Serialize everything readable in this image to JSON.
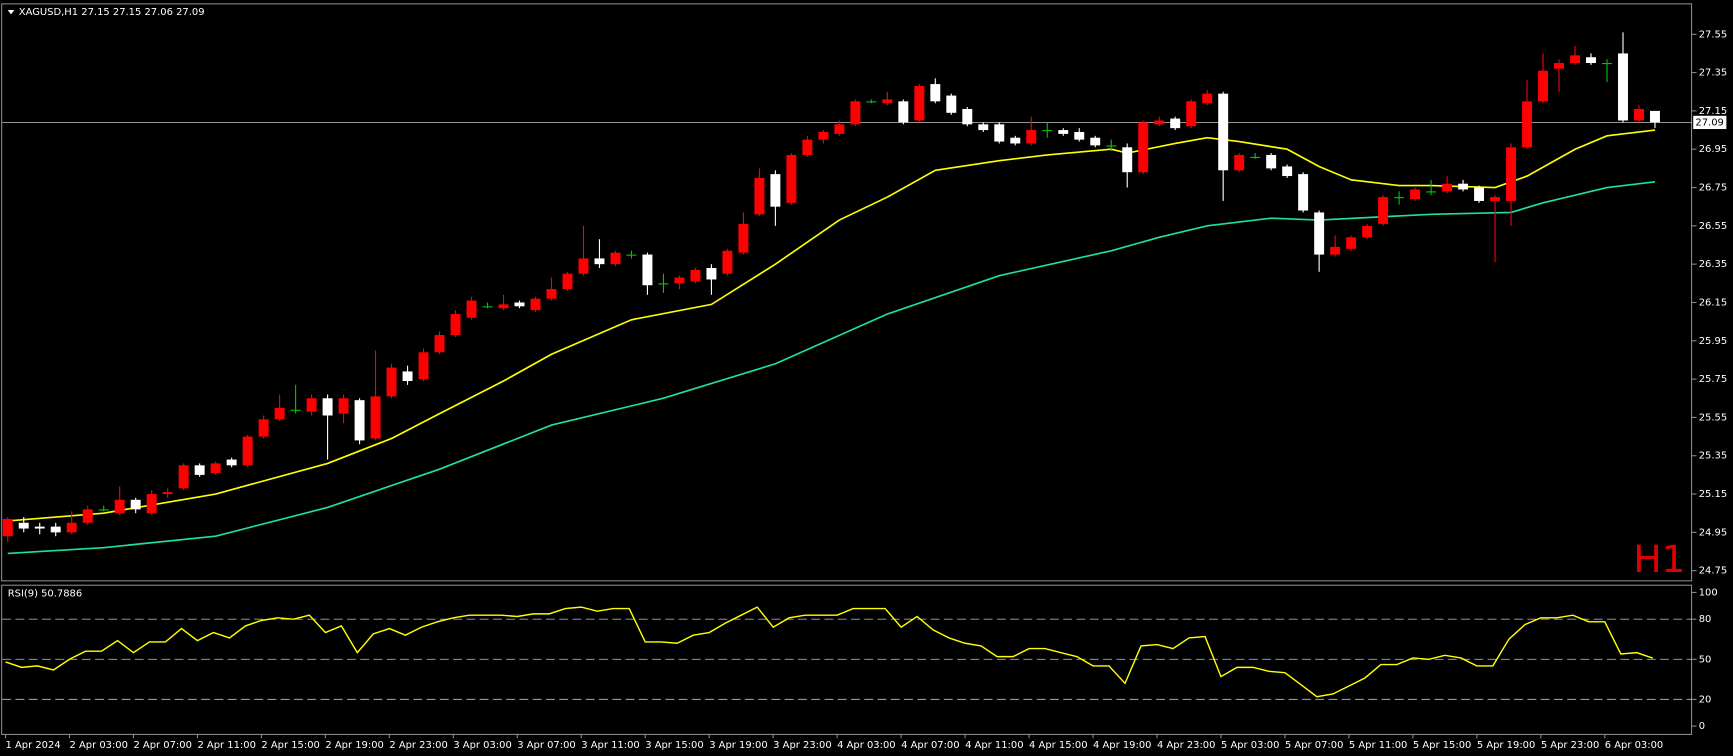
{
  "header": {
    "label": "XAGUSD,H1  27.15 27.15 27.06 27.09"
  },
  "chart_data": [
    {
      "type": "candlestick",
      "up_color": "#ff0000",
      "down_color": "#ffffff",
      "doji_color": "#00c800",
      "ylim": [
        24.7,
        27.7
      ],
      "yticks": [
        27.55,
        27.35,
        27.15,
        26.95,
        26.75,
        26.55,
        26.35,
        26.15,
        25.95,
        25.75,
        25.55,
        25.35,
        25.15,
        24.95,
        24.75
      ],
      "xticks": [
        {
          "value": 0,
          "label": "1 Apr 2024"
        },
        {
          "value": 4,
          "label": "2 Apr 03:00"
        },
        {
          "value": 8,
          "label": "2 Apr 07:00"
        },
        {
          "value": 12,
          "label": "2 Apr 11:00"
        },
        {
          "value": 16,
          "label": "2 Apr 15:00"
        },
        {
          "value": 20,
          "label": "2 Apr 19:00"
        },
        {
          "value": 24,
          "label": "2 Apr 23:00"
        },
        {
          "value": 28,
          "label": "3 Apr 03:00"
        },
        {
          "value": 32,
          "label": "3 Apr 07:00"
        },
        {
          "value": 36,
          "label": "3 Apr 11:00"
        },
        {
          "value": 40,
          "label": "3 Apr 15:00"
        },
        {
          "value": 44,
          "label": "3 Apr 19:00"
        },
        {
          "value": 48,
          "label": "3 Apr 23:00"
        },
        {
          "value": 52,
          "label": "4 Apr 03:00"
        },
        {
          "value": 56,
          "label": "4 Apr 07:00"
        },
        {
          "value": 60,
          "label": "4 Apr 11:00"
        },
        {
          "value": 64,
          "label": "4 Apr 15:00"
        },
        {
          "value": 68,
          "label": "4 Apr 19:00"
        },
        {
          "value": 72,
          "label": "4 Apr 23:00"
        },
        {
          "value": 76,
          "label": "5 Apr 03:00"
        },
        {
          "value": 80,
          "label": "5 Apr 07:00"
        },
        {
          "value": 84,
          "label": "5 Apr 11:00"
        },
        {
          "value": 88,
          "label": "5 Apr 15:00"
        },
        {
          "value": 92,
          "label": "5 Apr 19:00"
        },
        {
          "value": 96,
          "label": "5 Apr 23:00"
        },
        {
          "value": 100,
          "label": "6 Apr 03:00"
        }
      ],
      "open": [
        24.93,
        25.0,
        24.98,
        24.98,
        24.95,
        25.0,
        25.07,
        25.05,
        25.12,
        25.05,
        25.15,
        25.18,
        25.3,
        25.26,
        25.33,
        25.3,
        25.45,
        25.54,
        25.59,
        25.58,
        25.65,
        25.57,
        25.64,
        25.44,
        25.66,
        25.79,
        25.75,
        25.89,
        25.98,
        26.07,
        26.13,
        26.12,
        26.15,
        26.11,
        26.17,
        26.22,
        26.3,
        26.38,
        26.35,
        26.4,
        26.4,
        26.25,
        26.25,
        26.26,
        26.33,
        26.3,
        26.41,
        26.61,
        26.82,
        26.67,
        26.92,
        27.0,
        27.03,
        27.08,
        27.2,
        27.19,
        27.2,
        27.1,
        27.29,
        27.23,
        27.16,
        27.08,
        27.08,
        27.01,
        26.98,
        27.05,
        27.05,
        27.04,
        27.01,
        26.97,
        26.96,
        26.83,
        27.08,
        27.11,
        27.07,
        27.19,
        27.24,
        26.84,
        26.91,
        26.92,
        26.86,
        26.82,
        26.62,
        26.4,
        26.43,
        26.49,
        26.56,
        26.7,
        26.69,
        26.73,
        26.73,
        26.77,
        26.75,
        26.68,
        26.68,
        26.96,
        27.2,
        27.37,
        27.4,
        27.43,
        27.4,
        27.45,
        27.1,
        27.15
      ],
      "high": [
        25.03,
        25.03,
        25.0,
        25.0,
        25.06,
        25.09,
        25.09,
        25.19,
        25.13,
        25.17,
        25.18,
        25.31,
        25.31,
        25.32,
        25.34,
        25.46,
        25.56,
        25.67,
        25.72,
        25.67,
        25.67,
        25.67,
        25.65,
        25.9,
        25.83,
        25.82,
        25.91,
        26.0,
        26.11,
        26.18,
        26.15,
        26.19,
        26.16,
        26.18,
        26.28,
        26.31,
        26.55,
        26.48,
        26.42,
        26.42,
        26.41,
        26.3,
        26.29,
        26.33,
        26.35,
        26.43,
        26.62,
        26.85,
        26.84,
        26.93,
        27.02,
        27.05,
        27.1,
        27.21,
        27.21,
        27.25,
        27.21,
        27.29,
        27.32,
        27.24,
        27.17,
        27.09,
        27.09,
        27.02,
        27.12,
        27.09,
        27.06,
        27.06,
        27.02,
        27.0,
        26.98,
        27.1,
        27.12,
        27.12,
        27.21,
        27.26,
        27.25,
        26.93,
        26.93,
        26.93,
        26.87,
        26.83,
        26.63,
        26.5,
        26.5,
        26.56,
        26.71,
        26.73,
        26.75,
        26.79,
        26.81,
        26.79,
        26.76,
        26.71,
        26.98,
        27.31,
        27.45,
        27.42,
        27.49,
        27.45,
        27.42,
        27.56,
        27.18,
        27.15
      ],
      "low": [
        24.9,
        24.95,
        24.94,
        24.93,
        24.94,
        24.99,
        25.06,
        25.04,
        25.05,
        25.04,
        25.13,
        25.17,
        25.24,
        25.25,
        25.29,
        25.29,
        25.44,
        25.53,
        25.57,
        25.56,
        25.33,
        25.52,
        25.41,
        25.43,
        25.65,
        25.72,
        25.74,
        25.88,
        25.97,
        26.06,
        26.12,
        26.11,
        26.12,
        26.1,
        26.16,
        26.21,
        26.29,
        26.33,
        26.34,
        26.38,
        26.19,
        26.2,
        26.22,
        26.25,
        26.19,
        26.29,
        26.4,
        26.6,
        26.55,
        26.66,
        26.91,
        26.98,
        27.02,
        27.07,
        27.19,
        27.18,
        27.08,
        27.09,
        27.19,
        27.13,
        27.07,
        27.04,
        26.98,
        26.97,
        26.97,
        27.01,
        27.02,
        26.99,
        26.96,
        26.94,
        26.75,
        26.82,
        27.07,
        27.05,
        27.06,
        27.18,
        26.68,
        26.83,
        26.9,
        26.84,
        26.8,
        26.62,
        26.31,
        26.39,
        26.42,
        26.48,
        26.55,
        26.66,
        26.68,
        26.71,
        26.72,
        26.73,
        26.67,
        26.36,
        26.55,
        26.95,
        27.19,
        27.25,
        27.39,
        27.39,
        27.3,
        27.09,
        27.09,
        27.06
      ],
      "close": [
        25.02,
        24.97,
        24.97,
        24.95,
        25.0,
        25.07,
        25.07,
        25.12,
        25.07,
        25.15,
        25.16,
        25.3,
        25.25,
        25.31,
        25.3,
        25.45,
        25.54,
        25.6,
        25.59,
        25.65,
        25.56,
        25.65,
        25.43,
        25.66,
        25.81,
        25.74,
        25.89,
        25.98,
        26.09,
        26.16,
        26.13,
        26.14,
        26.13,
        26.17,
        26.22,
        26.3,
        26.38,
        26.35,
        26.41,
        26.4,
        26.24,
        26.25,
        26.28,
        26.32,
        26.27,
        26.42,
        26.56,
        26.8,
        26.65,
        26.92,
        27.0,
        27.04,
        27.08,
        27.2,
        27.2,
        27.21,
        27.09,
        27.28,
        27.2,
        27.14,
        27.08,
        27.05,
        26.99,
        26.98,
        27.05,
        27.05,
        27.03,
        27.0,
        26.97,
        26.97,
        26.83,
        27.09,
        27.1,
        27.06,
        27.2,
        27.24,
        26.84,
        26.92,
        26.91,
        26.85,
        26.81,
        26.63,
        26.4,
        26.44,
        26.49,
        26.55,
        26.7,
        26.7,
        26.74,
        26.73,
        26.77,
        26.74,
        26.68,
        26.7,
        26.96,
        27.2,
        27.36,
        27.4,
        27.44,
        27.4,
        27.4,
        27.1,
        27.16,
        27.09
      ],
      "overlays": [
        {
          "color": "#ffff00",
          "x": [
            0,
            6,
            13,
            20,
            24,
            27,
            31,
            34,
            39,
            44,
            48,
            52,
            55,
            58,
            62,
            65,
            69,
            70,
            73,
            75,
            77,
            80,
            82,
            84,
            87,
            89,
            93,
            95,
            98,
            100,
            103
          ],
          "values": [
            25.01,
            25.05,
            25.15,
            25.31,
            25.44,
            25.57,
            25.74,
            25.88,
            26.06,
            26.14,
            26.35,
            26.58,
            26.7,
            26.84,
            26.89,
            26.92,
            26.95,
            26.93,
            26.98,
            27.01,
            26.99,
            26.95,
            26.86,
            26.79,
            26.76,
            26.76,
            26.75,
            26.81,
            26.95,
            27.02,
            27.05
          ]
        },
        {
          "color": "#20e0a0",
          "x": [
            0,
            6,
            13,
            20,
            27,
            34,
            41,
            48,
            55,
            62,
            69,
            72,
            75,
            79,
            82,
            89,
            94,
            96,
            100,
            103
          ],
          "values": [
            24.84,
            24.87,
            24.93,
            25.08,
            25.28,
            25.51,
            25.65,
            25.83,
            26.09,
            26.29,
            26.42,
            26.49,
            26.55,
            26.59,
            26.58,
            26.61,
            26.62,
            26.67,
            26.75,
            26.78
          ]
        }
      ],
      "price_line": 27.09,
      "corner_label": "H1"
    },
    {
      "type": "line",
      "title": "RSI(9) 50.7886",
      "color": "#ffff00",
      "ylim": [
        -5,
        105
      ],
      "yticks": [
        100,
        80,
        50,
        20,
        0
      ],
      "levels": [
        80,
        50,
        20
      ],
      "values": [
        48,
        44,
        45,
        42,
        50,
        56,
        56,
        64,
        55,
        63,
        63,
        73,
        64,
        70,
        66,
        75,
        79,
        81,
        80,
        83,
        70,
        75,
        55,
        69,
        73,
        68,
        74,
        78,
        81,
        83,
        83,
        83,
        82,
        84,
        84,
        88,
        89,
        86,
        88,
        88,
        63,
        63,
        62,
        68,
        70,
        77,
        83,
        89,
        74,
        81,
        83,
        83,
        83,
        88,
        88,
        88,
        74,
        82,
        72,
        66,
        62,
        60,
        52,
        52,
        58,
        58,
        55,
        52,
        45,
        45,
        32,
        60,
        61,
        58,
        66,
        67,
        37,
        44,
        44,
        41,
        40,
        31,
        22,
        24,
        30,
        36,
        46,
        46,
        51,
        50,
        53,
        51,
        45,
        45,
        65,
        76,
        81,
        81,
        83,
        78,
        78,
        54,
        55,
        50.7886
      ]
    }
  ]
}
